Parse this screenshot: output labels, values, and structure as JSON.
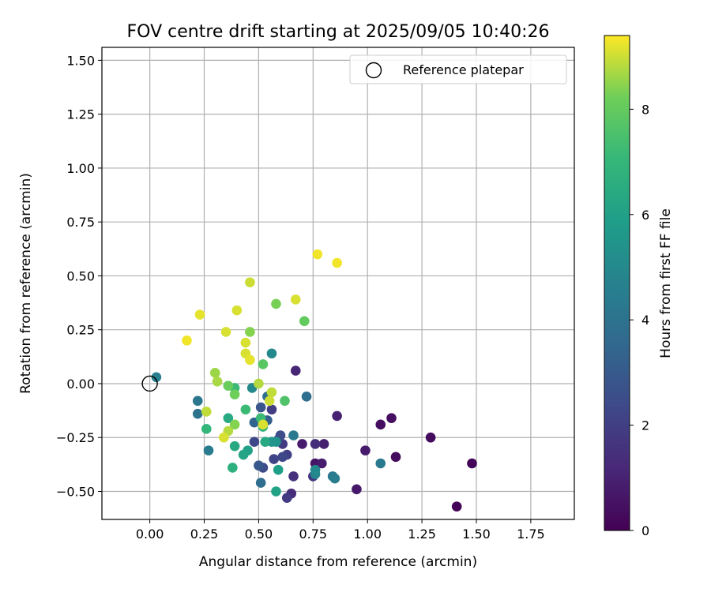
{
  "chart_data": {
    "type": "scatter",
    "title": "FOV centre drift starting at 2025/09/05 10:40:26",
    "xlabel": "Angular distance from reference (arcmin)",
    "ylabel": "Rotation from reference (arcmin)",
    "xlim": [
      -0.22,
      1.95
    ],
    "ylim": [
      -0.63,
      1.56
    ],
    "x_ticks": [
      0.0,
      0.25,
      0.5,
      0.75,
      1.0,
      1.25,
      1.5,
      1.75
    ],
    "x_tick_labels": [
      "0.00",
      "0.25",
      "0.50",
      "0.75",
      "1.00",
      "1.25",
      "1.50",
      "1.75"
    ],
    "y_ticks": [
      -0.5,
      -0.25,
      0.0,
      0.25,
      0.5,
      0.75,
      1.0,
      1.25,
      1.5
    ],
    "y_tick_labels": [
      "−0.50",
      "−0.25",
      "0.00",
      "0.25",
      "0.50",
      "0.75",
      "1.00",
      "1.25",
      "1.50"
    ],
    "grid": true,
    "legend": {
      "placement": "top-right",
      "entries": [
        "Reference platepar"
      ]
    },
    "reference_point": {
      "x": 0.0,
      "y": 0.0
    },
    "colorbar": {
      "label": "Hours from first FF file",
      "colormap": "viridis",
      "range": [
        0,
        9.4
      ],
      "ticks": [
        0,
        2,
        4,
        6,
        8
      ],
      "tick_labels": [
        "0",
        "2",
        "4",
        "6",
        "8"
      ]
    },
    "points": [
      {
        "x": 1.48,
        "y": -0.37,
        "c": 0.1
      },
      {
        "x": 1.41,
        "y": -0.57,
        "c": 0.1
      },
      {
        "x": 1.29,
        "y": -0.25,
        "c": 0.3
      },
      {
        "x": 1.13,
        "y": -0.34,
        "c": 0.3
      },
      {
        "x": 1.11,
        "y": -0.16,
        "c": 0.4
      },
      {
        "x": 1.06,
        "y": -0.19,
        "c": 0.4
      },
      {
        "x": 0.95,
        "y": -0.49,
        "c": 0.7
      },
      {
        "x": 0.99,
        "y": -0.31,
        "c": 0.8
      },
      {
        "x": 0.86,
        "y": -0.15,
        "c": 1.0
      },
      {
        "x": 0.8,
        "y": -0.28,
        "c": 0.9
      },
      {
        "x": 0.79,
        "y": -0.37,
        "c": 0.8
      },
      {
        "x": 0.76,
        "y": -0.37,
        "c": 0.6
      },
      {
        "x": 0.7,
        "y": -0.28,
        "c": 0.8
      },
      {
        "x": 0.67,
        "y": 0.06,
        "c": 1.1
      },
      {
        "x": 0.76,
        "y": -0.28,
        "c": 1.4
      },
      {
        "x": 0.75,
        "y": -0.43,
        "c": 1.7
      },
      {
        "x": 0.66,
        "y": -0.43,
        "c": 1.5
      },
      {
        "x": 0.65,
        "y": -0.51,
        "c": 1.3
      },
      {
        "x": 0.63,
        "y": -0.53,
        "c": 1.8
      },
      {
        "x": 0.63,
        "y": -0.33,
        "c": 2.0
      },
      {
        "x": 0.61,
        "y": -0.34,
        "c": 2.3
      },
      {
        "x": 0.61,
        "y": -0.28,
        "c": 1.8
      },
      {
        "x": 0.57,
        "y": -0.35,
        "c": 2.2
      },
      {
        "x": 0.56,
        "y": -0.12,
        "c": 1.9
      },
      {
        "x": 0.59,
        "y": -0.26,
        "c": 2.1
      },
      {
        "x": 0.6,
        "y": -0.24,
        "c": 2.5
      },
      {
        "x": 0.52,
        "y": -0.39,
        "c": 2.5
      },
      {
        "x": 0.5,
        "y": -0.38,
        "c": 2.9
      },
      {
        "x": 0.48,
        "y": -0.27,
        "c": 2.3
      },
      {
        "x": 0.51,
        "y": -0.11,
        "c": 2.8
      },
      {
        "x": 0.54,
        "y": -0.17,
        "c": 3.2
      },
      {
        "x": 0.48,
        "y": -0.18,
        "c": 3.4
      },
      {
        "x": 0.51,
        "y": -0.46,
        "c": 3.8
      },
      {
        "x": 0.54,
        "y": -0.06,
        "c": 3.8
      },
      {
        "x": 0.72,
        "y": -0.06,
        "c": 3.8
      },
      {
        "x": 0.66,
        "y": -0.24,
        "c": 4.3
      },
      {
        "x": 0.85,
        "y": -0.44,
        "c": 4.5
      },
      {
        "x": 0.84,
        "y": -0.43,
        "c": 4.3
      },
      {
        "x": 1.06,
        "y": -0.37,
        "c": 4.3
      },
      {
        "x": 0.76,
        "y": -0.42,
        "c": 4.8
      },
      {
        "x": 0.76,
        "y": -0.4,
        "c": 5.0
      },
      {
        "x": 0.22,
        "y": -0.14,
        "c": 4.0
      },
      {
        "x": 0.22,
        "y": -0.08,
        "c": 4.2
      },
      {
        "x": 0.27,
        "y": -0.31,
        "c": 4.4
      },
      {
        "x": 0.03,
        "y": 0.03,
        "c": 4.6
      },
      {
        "x": 0.47,
        "y": -0.02,
        "c": 5.0
      },
      {
        "x": 0.56,
        "y": 0.14,
        "c": 5.0
      },
      {
        "x": 0.58,
        "y": -0.27,
        "c": 5.4
      },
      {
        "x": 0.56,
        "y": -0.27,
        "c": 5.5
      },
      {
        "x": 0.59,
        "y": -0.4,
        "c": 5.9
      },
      {
        "x": 0.58,
        "y": -0.5,
        "c": 6.1
      },
      {
        "x": 0.45,
        "y": -0.31,
        "c": 6.0
      },
      {
        "x": 0.43,
        "y": -0.33,
        "c": 6.2
      },
      {
        "x": 0.39,
        "y": -0.29,
        "c": 6.4
      },
      {
        "x": 0.38,
        "y": -0.39,
        "c": 6.7
      },
      {
        "x": 0.36,
        "y": -0.16,
        "c": 6.4
      },
      {
        "x": 0.52,
        "y": -0.2,
        "c": 6.8
      },
      {
        "x": 0.53,
        "y": -0.27,
        "c": 6.4
      },
      {
        "x": 0.26,
        "y": -0.21,
        "c": 7.0
      },
      {
        "x": 0.39,
        "y": -0.02,
        "c": 7.2
      },
      {
        "x": 0.44,
        "y": -0.12,
        "c": 7.2
      },
      {
        "x": 0.51,
        "y": -0.16,
        "c": 7.2
      },
      {
        "x": 0.62,
        "y": -0.08,
        "c": 7.6
      },
      {
        "x": 0.52,
        "y": 0.09,
        "c": 7.8
      },
      {
        "x": 0.58,
        "y": 0.37,
        "c": 8.3
      },
      {
        "x": 0.71,
        "y": 0.29,
        "c": 8.0
      },
      {
        "x": 0.46,
        "y": 0.24,
        "c": 8.4
      },
      {
        "x": 0.36,
        "y": -0.01,
        "c": 8.1
      },
      {
        "x": 0.39,
        "y": -0.05,
        "c": 8.2
      },
      {
        "x": 0.39,
        "y": -0.19,
        "c": 8.4
      },
      {
        "x": 0.36,
        "y": -0.22,
        "c": 8.8
      },
      {
        "x": 0.34,
        "y": -0.25,
        "c": 9.1
      },
      {
        "x": 0.26,
        "y": -0.13,
        "c": 8.9
      },
      {
        "x": 0.31,
        "y": 0.01,
        "c": 8.7
      },
      {
        "x": 0.3,
        "y": 0.05,
        "c": 8.6
      },
      {
        "x": 0.5,
        "y": 0.0,
        "c": 8.8
      },
      {
        "x": 0.56,
        "y": -0.04,
        "c": 8.9
      },
      {
        "x": 0.55,
        "y": -0.08,
        "c": 9.0
      },
      {
        "x": 0.52,
        "y": -0.19,
        "c": 9.1
      },
      {
        "x": 0.46,
        "y": 0.47,
        "c": 9.0
      },
      {
        "x": 0.44,
        "y": 0.14,
        "c": 9.1
      },
      {
        "x": 0.44,
        "y": 0.19,
        "c": 9.1
      },
      {
        "x": 0.46,
        "y": 0.11,
        "c": 9.2
      },
      {
        "x": 0.35,
        "y": 0.24,
        "c": 9.1
      },
      {
        "x": 0.4,
        "y": 0.34,
        "c": 9.1
      },
      {
        "x": 0.23,
        "y": 0.32,
        "c": 9.2
      },
      {
        "x": 0.17,
        "y": 0.2,
        "c": 9.3
      },
      {
        "x": 0.67,
        "y": 0.39,
        "c": 9.1
      },
      {
        "x": 0.77,
        "y": 0.6,
        "c": 9.3
      },
      {
        "x": 0.86,
        "y": 0.56,
        "c": 9.3
      }
    ]
  }
}
